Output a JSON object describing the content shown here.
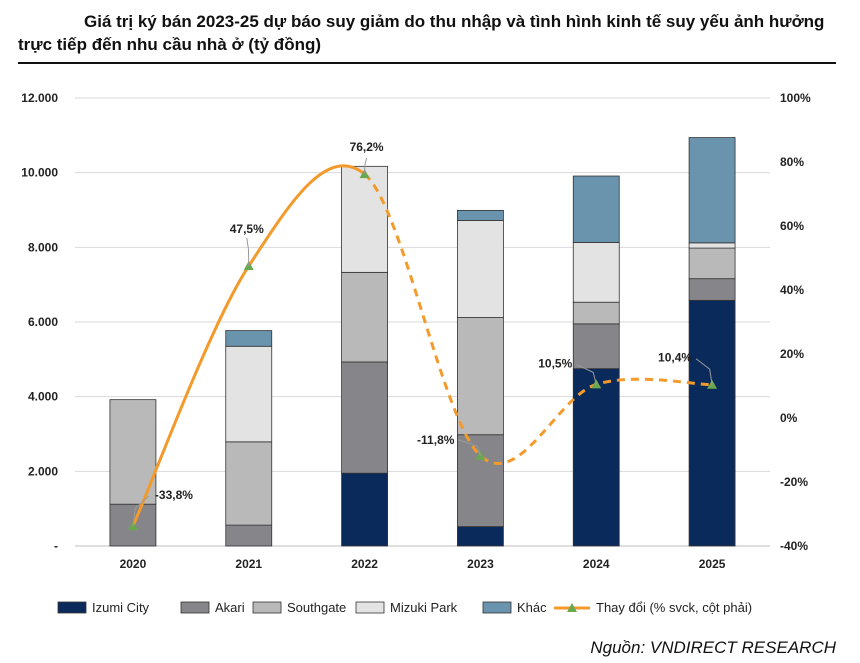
{
  "title": "Giá trị ký bán 2023-25 dự báo suy giảm do thu nhập và tình hình kinh tế suy yếu ảnh hưởng trực tiếp đến nhu cầu nhà ở (tỷ đồng)",
  "source": "Nguồn: VNDIRECT RESEARCH",
  "chart_data": {
    "type": "bar",
    "stacked": true,
    "categories": [
      "2020",
      "2021",
      "2022",
      "2023",
      "2024",
      "2025"
    ],
    "series": [
      {
        "name": "Izumi City",
        "color": "#0b2a5c",
        "values": [
          0,
          0,
          1950,
          520,
          4750,
          6580
        ]
      },
      {
        "name": "Akari",
        "color": "#86868a",
        "values": [
          1120,
          560,
          2980,
          2460,
          1200,
          580
        ]
      },
      {
        "name": "Southgate",
        "color": "#b9b9b9",
        "values": [
          2800,
          2230,
          2400,
          3140,
          580,
          820
        ]
      },
      {
        "name": "Mizuki Park",
        "color": "#e3e3e3",
        "values": [
          0,
          2560,
          2840,
          2600,
          1600,
          140
        ]
      },
      {
        "name": "Khác",
        "color": "#6a93ad",
        "values": [
          0,
          420,
          0,
          270,
          1780,
          2820
        ]
      }
    ],
    "line": {
      "name": "Thay đổi (% svck, cột phải)",
      "color": "#f39a2b",
      "marker_color": "#6aa84f",
      "values": [
        -33.8,
        47.5,
        76.2,
        -11.8,
        10.5,
        10.4
      ],
      "labels": [
        "-33,8%",
        "47,5%",
        "76,2%",
        "-11,8%",
        "10,5%",
        "10,4%"
      ],
      "dashed_from": "2022"
    },
    "y_left": {
      "min": 0,
      "max": 12000,
      "ticks": [
        0,
        2000,
        4000,
        6000,
        8000,
        10000,
        12000
      ],
      "tick_labels": [
        "-",
        "2.000",
        "4.000",
        "6.000",
        "8.000",
        "10.000",
        "12.000"
      ]
    },
    "y_right": {
      "min": -40,
      "max": 100,
      "ticks": [
        -40,
        -20,
        0,
        20,
        40,
        60,
        80,
        100
      ],
      "tick_labels": [
        "-40%",
        "-20%",
        "0%",
        "20%",
        "40%",
        "60%",
        "80%",
        "100%"
      ]
    },
    "grid": true,
    "legend_position": "bottom"
  }
}
